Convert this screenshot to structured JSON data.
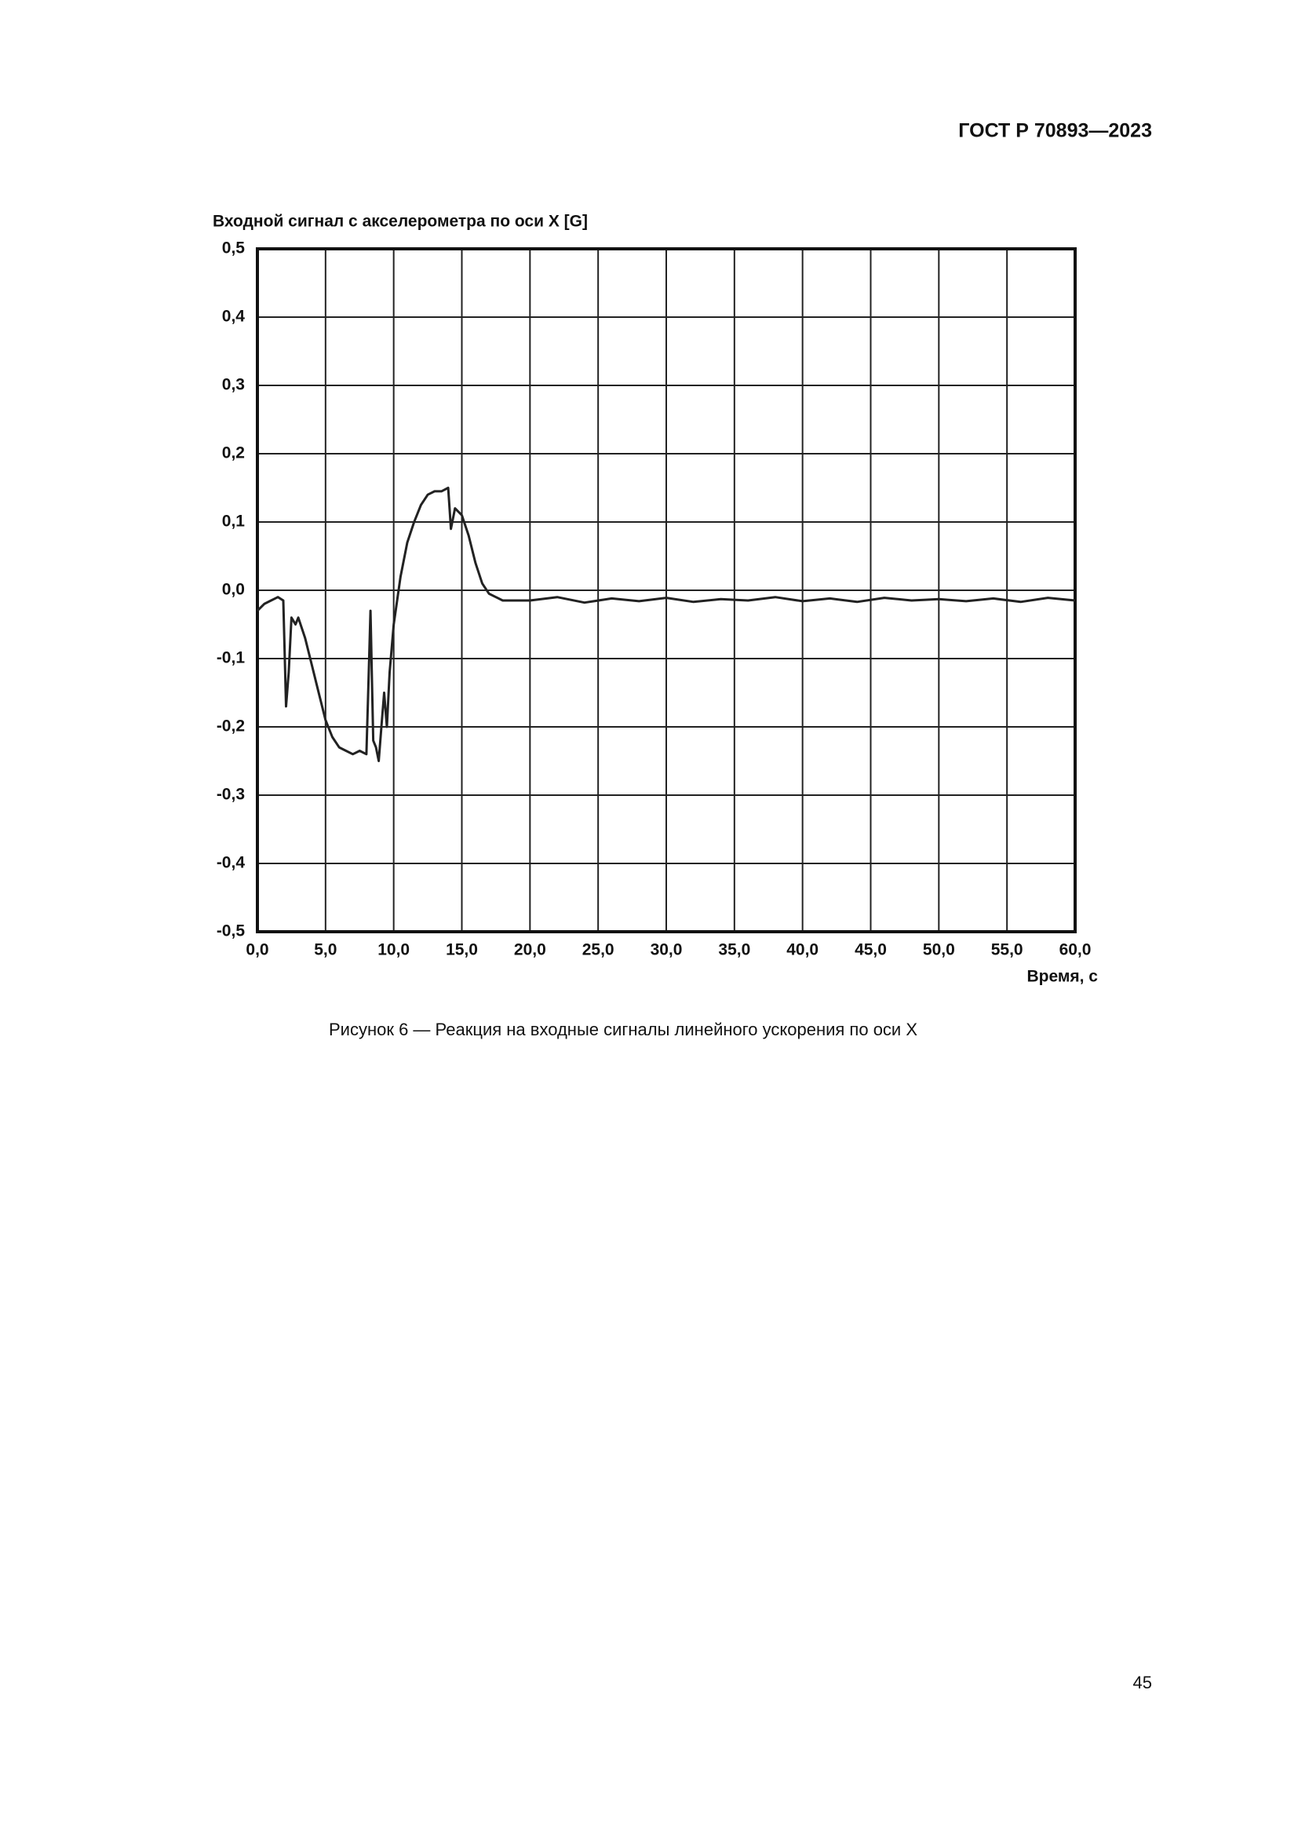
{
  "header": {
    "code": "ГОСТ Р 70893—2023"
  },
  "chart_data": {
    "type": "line",
    "ylabel": "Входной сигнал с акселерометра по оси X [G]",
    "xlabel": "Время, с",
    "color": "#222222",
    "grid": true,
    "xlim": [
      0,
      60
    ],
    "ylim": [
      -0.5,
      0.5
    ],
    "xticks": [
      {
        "value": 0,
        "label": "0,0"
      },
      {
        "value": 5,
        "label": "5,0"
      },
      {
        "value": 10,
        "label": "10,0"
      },
      {
        "value": 15,
        "label": "15,0"
      },
      {
        "value": 20,
        "label": "20,0"
      },
      {
        "value": 25,
        "label": "25,0"
      },
      {
        "value": 30,
        "label": "30,0"
      },
      {
        "value": 35,
        "label": "35,0"
      },
      {
        "value": 40,
        "label": "40,0"
      },
      {
        "value": 45,
        "label": "45,0"
      },
      {
        "value": 50,
        "label": "50,0"
      },
      {
        "value": 55,
        "label": "55,0"
      },
      {
        "value": 60,
        "label": "60,0"
      }
    ],
    "yticks": [
      {
        "value": 0.5,
        "label": "0,5"
      },
      {
        "value": 0.4,
        "label": "0,4"
      },
      {
        "value": 0.3,
        "label": "0,3"
      },
      {
        "value": 0.2,
        "label": "0,2"
      },
      {
        "value": 0.1,
        "label": "0,1"
      },
      {
        "value": 0,
        "label": "0,0"
      },
      {
        "value": -0.1,
        "label": "-0,1"
      },
      {
        "value": -0.2,
        "label": "-0,2"
      },
      {
        "value": -0.3,
        "label": "-0,3"
      },
      {
        "value": -0.4,
        "label": "-0,4"
      },
      {
        "value": -0.5,
        "label": "-0,5"
      }
    ],
    "x": [
      0,
      0.5,
      1,
      1.5,
      1.9,
      2.1,
      2.3,
      2.5,
      2.8,
      3,
      3.5,
      4,
      4.5,
      5,
      5.5,
      6,
      6.5,
      7,
      7.5,
      8,
      8.2,
      8.3,
      8.5,
      8.7,
      8.9,
      9.1,
      9.3,
      9.5,
      9.7,
      10,
      10.5,
      11,
      11.5,
      12,
      12.5,
      13,
      13.5,
      14,
      14.2,
      14.5,
      15,
      15.5,
      16,
      16.5,
      17,
      17.5,
      18,
      20,
      22,
      24,
      26,
      28,
      30,
      32,
      34,
      36,
      38,
      40,
      42,
      44,
      46,
      48,
      50,
      52,
      54,
      56,
      58,
      60
    ],
    "values": [
      -0.03,
      -0.02,
      -0.015,
      -0.01,
      -0.015,
      -0.17,
      -0.12,
      -0.04,
      -0.05,
      -0.04,
      -0.07,
      -0.11,
      -0.15,
      -0.19,
      -0.215,
      -0.23,
      -0.235,
      -0.24,
      -0.235,
      -0.24,
      -0.1,
      -0.03,
      -0.22,
      -0.23,
      -0.25,
      -0.2,
      -0.15,
      -0.2,
      -0.12,
      -0.05,
      0.02,
      0.07,
      0.1,
      0.125,
      0.14,
      0.145,
      0.145,
      0.15,
      0.09,
      0.12,
      0.11,
      0.08,
      0.04,
      0.01,
      -0.005,
      -0.01,
      -0.015,
      -0.015,
      -0.01,
      -0.018,
      -0.012,
      -0.016,
      -0.011,
      -0.017,
      -0.013,
      -0.015,
      -0.01,
      -0.016,
      -0.012,
      -0.017,
      -0.011,
      -0.015,
      -0.013,
      -0.016,
      -0.012,
      -0.017,
      -0.011,
      -0.015
    ]
  },
  "caption": "Рисунок 6 — Реакция на входные сигналы линейного ускорения по оси X",
  "page_number": "45"
}
